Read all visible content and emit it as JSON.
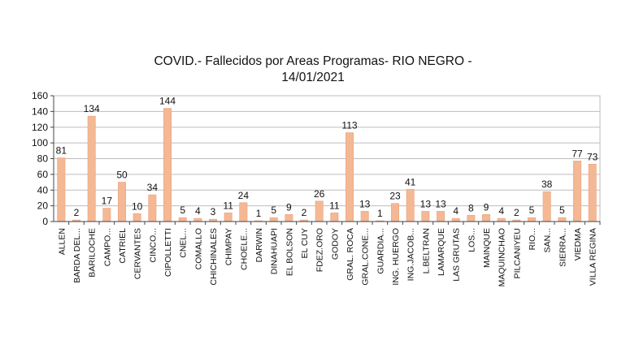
{
  "chart_data": {
    "type": "bar",
    "title": "COVID.- Fallecidos por Areas Programas- RIO NEGRO -",
    "subtitle": "14/01/2021",
    "xlabel": "",
    "ylabel": "",
    "ylim": [
      0,
      160
    ],
    "yticks": [
      "0",
      "20",
      "40",
      "60",
      "80",
      "100",
      "120",
      "140",
      "160"
    ],
    "grid": true,
    "legend": "none",
    "bar_color": "#f4b894",
    "bar_edge_color": "#e9a27c",
    "categories": [
      "ALLEN",
      "BARDA DEL...",
      "BARILOCHE",
      "CAMPO...",
      "CATRIEL",
      "CERVANTES",
      "CINCO...",
      "CIPOLLETTI",
      "CNEL...",
      "COMALLO",
      "CHICHINALES",
      "CHIMPAY",
      "CHOELE...",
      "DARWIN",
      "DINAHUAPI",
      "EL BOLSON",
      "EL CUY",
      "FDEZ.ORO",
      "GODOY",
      "GRAL. ROCA",
      "GRAL.CONE...",
      "GUARDIA...",
      "ING. HUERGO",
      "ING.JACOB...",
      "L.BELTRAN",
      "LAMARQUE",
      "LAS GRUTAS",
      "LOS...",
      "MAINQUE",
      "MAQUINCHAO",
      "PILCANIYEU",
      "RIO...",
      "SAN...",
      "SIERRA...",
      "VIEDMA",
      "VILLA REGINA"
    ],
    "values": [
      81,
      2,
      134,
      17,
      50,
      10,
      34,
      144,
      5,
      4,
      3,
      11,
      24,
      1,
      5,
      9,
      2,
      26,
      11,
      113,
      13,
      1,
      23,
      41,
      13,
      13,
      4,
      8,
      9,
      4,
      2,
      5,
      38,
      5,
      77,
      73
    ]
  }
}
